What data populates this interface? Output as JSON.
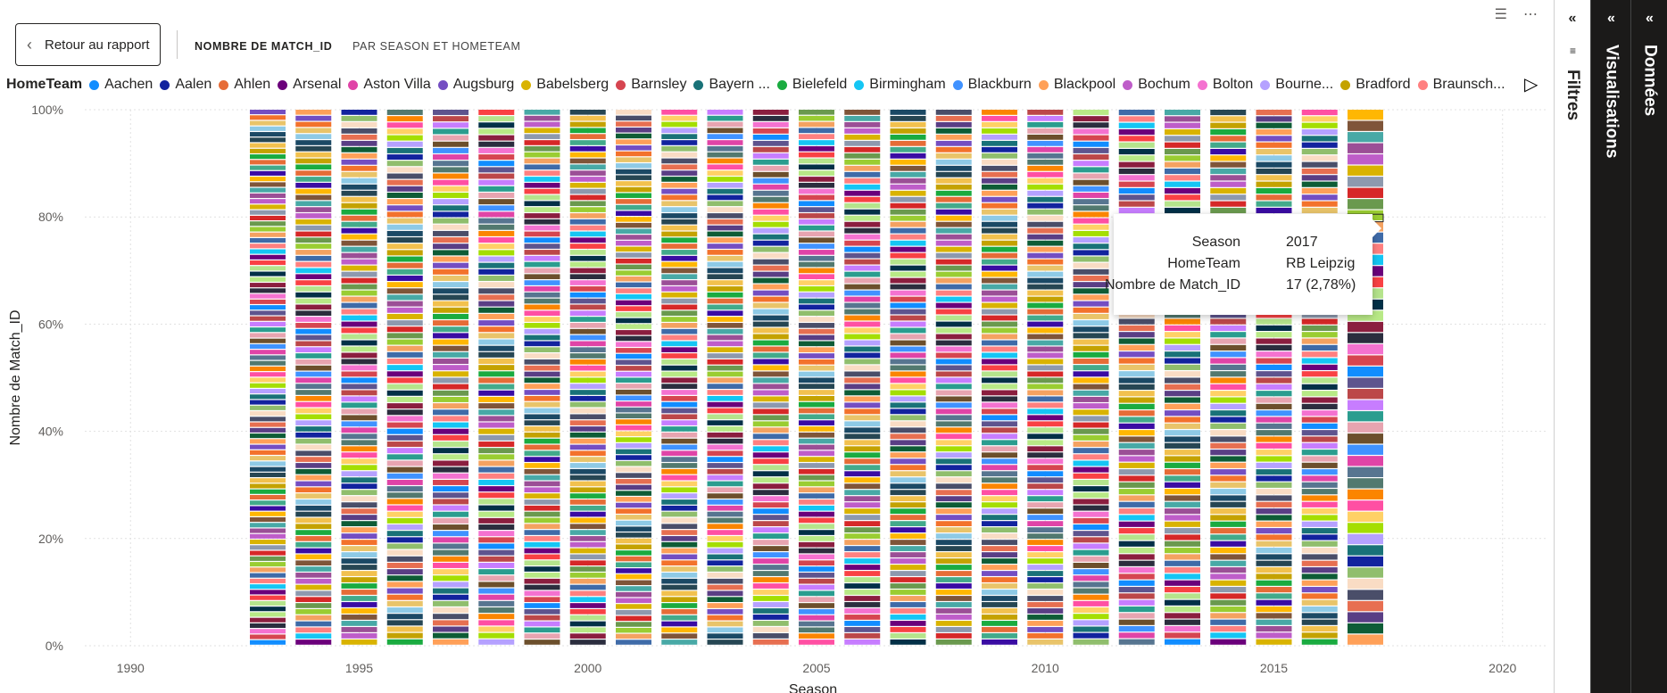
{
  "header": {
    "back_label": "Retour au rapport",
    "title_main": "NOMBRE DE MATCH_ID",
    "title_sub": "PAR SEASON ET HOMETEAM",
    "filter_icon": "filter-icon",
    "more_icon": "more-options-icon"
  },
  "legend": {
    "title": "HomeTeam",
    "items": [
      {
        "label": "Aachen",
        "color": "#118DFF"
      },
      {
        "label": "Aalen",
        "color": "#12239E"
      },
      {
        "label": "Ahlen",
        "color": "#E66C37"
      },
      {
        "label": "Arsenal",
        "color": "#6B007B"
      },
      {
        "label": "Aston Villa",
        "color": "#E044A7"
      },
      {
        "label": "Augsburg",
        "color": "#744EC2"
      },
      {
        "label": "Babelsberg",
        "color": "#D9B300"
      },
      {
        "label": "Barnsley",
        "color": "#D64550"
      },
      {
        "label": "Bayern ...",
        "color": "#197278"
      },
      {
        "label": "Bielefeld",
        "color": "#1AAB40"
      },
      {
        "label": "Birmingham",
        "color": "#15C6F4"
      },
      {
        "label": "Blackburn",
        "color": "#4092FF"
      },
      {
        "label": "Blackpool",
        "color": "#FFA058"
      },
      {
        "label": "Bochum",
        "color": "#BE5DC9"
      },
      {
        "label": "Bolton",
        "color": "#F472D0"
      },
      {
        "label": "Bourne...",
        "color": "#B5A1FF"
      },
      {
        "label": "Bradford",
        "color": "#C4A200"
      },
      {
        "label": "Braunsch...",
        "color": "#FF8080"
      }
    ],
    "next_icon": "legend-next-icon"
  },
  "chart_data": {
    "type": "bar",
    "stacking": "100% stacked",
    "title": "Nombre de Match_ID par Season et HomeTeam",
    "xlabel": "Season",
    "ylabel": "Nombre de Match_ID",
    "xlim": [
      1989,
      2021
    ],
    "x_ticks": [
      1990,
      1995,
      2000,
      2005,
      2010,
      2015,
      2020
    ],
    "ylim": [
      0,
      100
    ],
    "y_ticks": [
      "0%",
      "20%",
      "40%",
      "60%",
      "80%",
      "100%"
    ],
    "categories": [
      1993,
      1994,
      1995,
      1996,
      1997,
      1998,
      1999,
      2000,
      2001,
      2002,
      2003,
      2004,
      2005,
      2006,
      2007,
      2008,
      2009,
      2010,
      2011,
      2012,
      2013,
      2014,
      2015,
      2016,
      2017
    ],
    "segment_counts": [
      96,
      88,
      86,
      84,
      84,
      84,
      88,
      88,
      90,
      88,
      88,
      86,
      88,
      86,
      86,
      86,
      86,
      86,
      84,
      82,
      82,
      82,
      82,
      82,
      48
    ],
    "highlight": {
      "season": 2017,
      "team": "RB Leipzig",
      "count": 17,
      "percent": "2,78%"
    },
    "palette": [
      "#118DFF",
      "#12239E",
      "#E66C37",
      "#6B007B",
      "#E044A7",
      "#744EC2",
      "#D9B300",
      "#D64550",
      "#197278",
      "#1AAB40",
      "#15C6F4",
      "#4092FF",
      "#FFA058",
      "#BE5DC9",
      "#F472D0",
      "#B5A1FF",
      "#C4A200",
      "#FF8080",
      "#6C4F2C",
      "#0E5C36",
      "#9B4F96",
      "#2B2D3E",
      "#A4DE02",
      "#F2C14E",
      "#3F6BA8",
      "#E7A4B0",
      "#5A3E85",
      "#48A9A6",
      "#8B1E3F",
      "#FFD166",
      "#264653",
      "#F4A261",
      "#2A9D8F",
      "#E76F51",
      "#7F5539",
      "#B8E986",
      "#FF4FA3",
      "#1B4965",
      "#9ACD32",
      "#C77DFF",
      "#4A4E69",
      "#FFB703",
      "#023047",
      "#FB8500",
      "#8ECAE6",
      "#6A994E",
      "#BC4749",
      "#F9DCC4",
      "#3A0CA3",
      "#B5E48C",
      "#52796F",
      "#E9C46A",
      "#D62828",
      "#5E548E",
      "#90BE6D",
      "#43AA8B",
      "#F94144",
      "#577590",
      "#F3722C",
      "#8D99AE"
    ]
  },
  "tooltip": {
    "rows": [
      {
        "key": "Season",
        "value": "2017"
      },
      {
        "key": "HomeTeam",
        "value": "RB Leipzig"
      },
      {
        "key": "Nombre de Match_ID",
        "value": "17 (2,78%)"
      }
    ]
  },
  "panes": {
    "filters": "Filtres",
    "visualizations": "Visualisations",
    "data": "Données"
  }
}
